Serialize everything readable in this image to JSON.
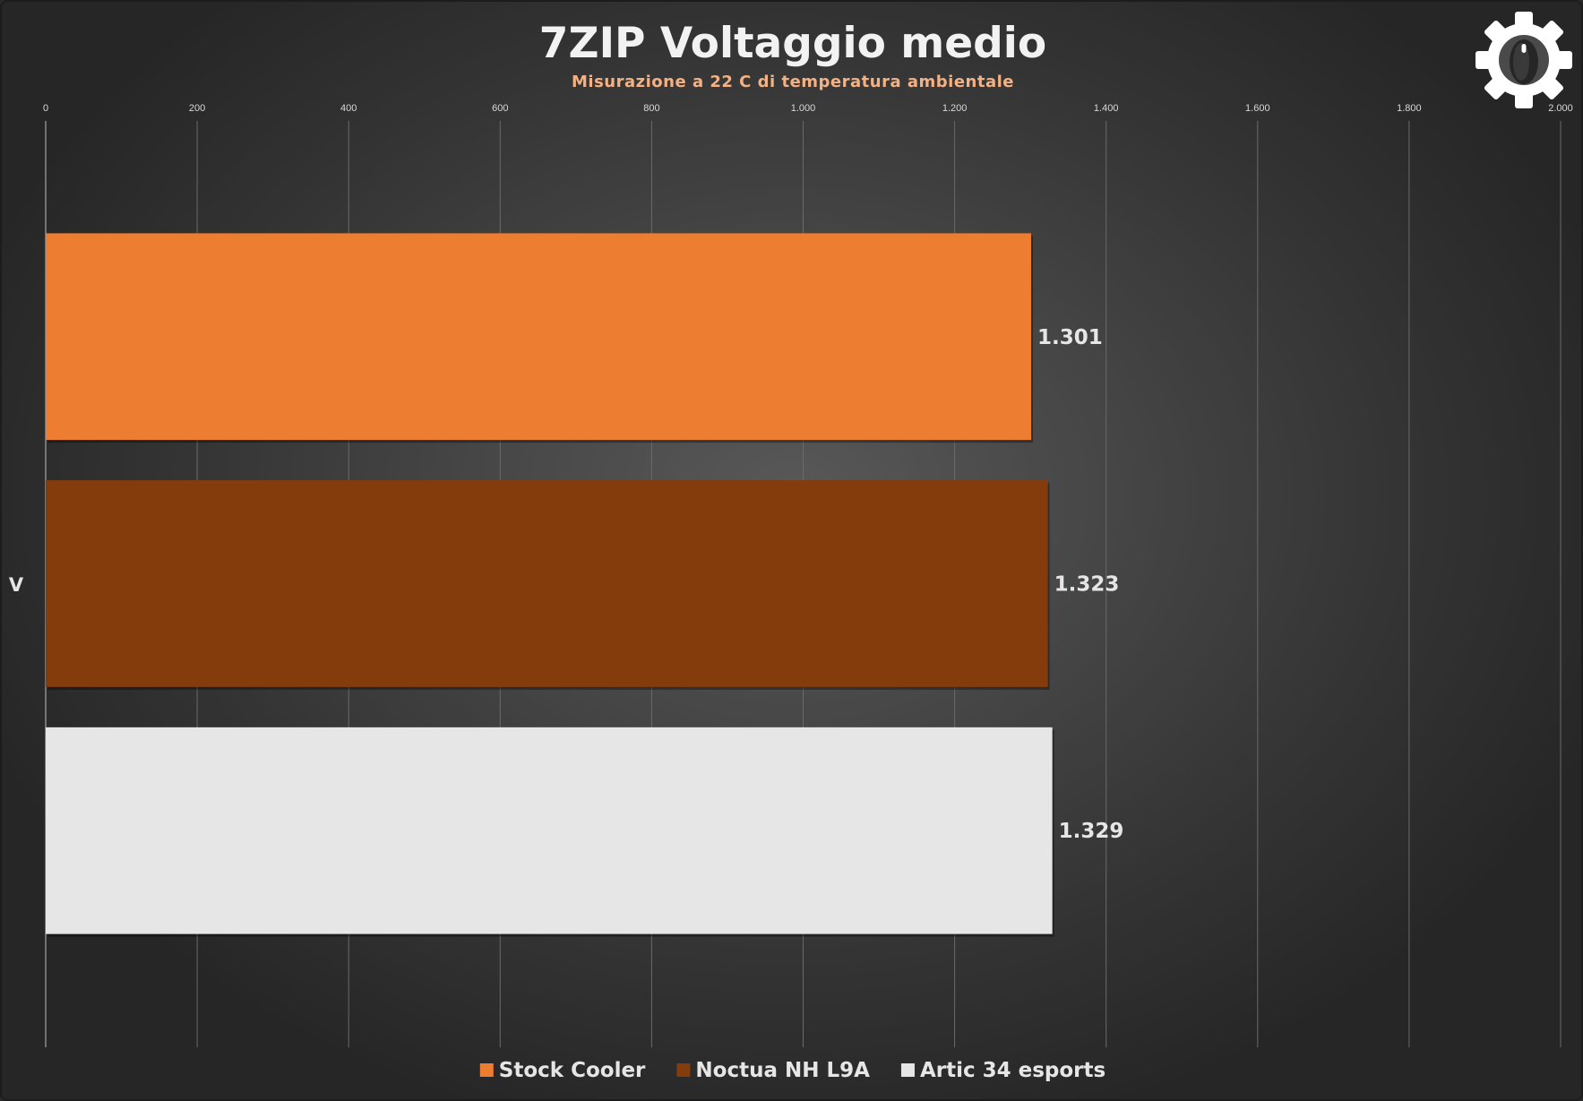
{
  "chart_data": {
    "type": "bar",
    "orientation": "horizontal",
    "title": "7ZIP Voltaggio medio",
    "subtitle": "Misurazione  a 22 C di temperatura  ambientale",
    "xlabel": "",
    "ylabel": "V",
    "xlim": [
      0,
      2000
    ],
    "x_ticks": [
      0,
      200,
      400,
      600,
      800,
      1000,
      1200,
      1400,
      1600,
      1800,
      2000
    ],
    "x_tick_labels": [
      "0",
      "200",
      "400",
      "600",
      "800",
      "1.000",
      "1.200",
      "1.400",
      "1.600",
      "1.800",
      "2.000"
    ],
    "grid": true,
    "legend_position": "bottom",
    "series": [
      {
        "name": "Stock Cooler",
        "value": 1301,
        "label": "1.301",
        "color": "#ed7d31"
      },
      {
        "name": "Noctua NH L9A",
        "value": 1323,
        "label": "1.323",
        "color": "#843c0c"
      },
      {
        "name": "Artic 34 esports",
        "value": 1329,
        "label": "1.329",
        "color": "#e7e6e6"
      }
    ]
  },
  "logo": {
    "icon": "gear-mouse-icon",
    "color": "#ffffff"
  }
}
